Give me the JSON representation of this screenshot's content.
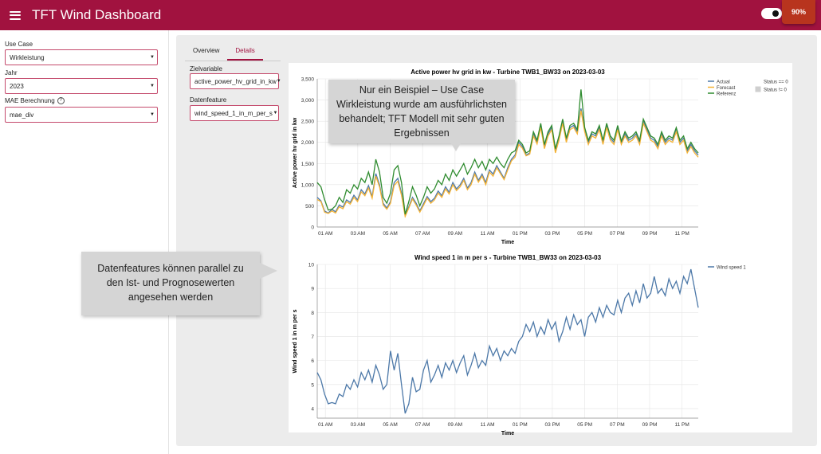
{
  "app": {
    "title": "TFT Wind Dashboard",
    "zoom": "90%"
  },
  "sidebar": {
    "use_case": {
      "label": "Use Case",
      "value": "Wirkleistung"
    },
    "jahr": {
      "label": "Jahr",
      "value": "2023"
    },
    "mae": {
      "label": "MAE Berechnung",
      "value": "mae_div",
      "help": "?"
    }
  },
  "tabs": [
    {
      "label": "Overview"
    },
    {
      "label": "Details"
    }
  ],
  "controls": {
    "zielvariable": {
      "label": "Zielvariable",
      "value": "active_power_hv_grid_in_kw"
    },
    "datenfeature": {
      "label": "Datenfeature",
      "value": "wind_speed_1_in_m_per_s"
    }
  },
  "annotations": {
    "top": "Nur ein Beispiel – Use Case Wirkleistung wurde am ausführlichsten behandelt; TFT Modell mit sehr guten Ergebnissen",
    "left": "Datenfeatures können parallel zu den Ist- und Prognosewerten angesehen werden"
  },
  "colors": {
    "accent": "#a1123f",
    "actual": "#4c78a8",
    "forecast": "#f5b335",
    "referenz": "#2e8b2e"
  },
  "chart_data": [
    {
      "type": "line",
      "title": "Active power hv grid in kw -  Turbine TWB1_BW33 on 2023-03-03",
      "xlabel": "Time",
      "ylabel": "Active power hv grid in kw",
      "x_ticks": [
        "01 AM",
        "03 AM",
        "05 AM",
        "07 AM",
        "09 AM",
        "11 AM",
        "01 PM",
        "03 PM",
        "05 PM",
        "07 PM",
        "09 PM",
        "11 PM"
      ],
      "xlim_hours": [
        0.5,
        24
      ],
      "ylim": [
        0,
        3500
      ],
      "y_ticks": [
        0,
        500,
        1000,
        1500,
        2000,
        2500,
        3000,
        3500
      ],
      "y_tick_labels": [
        "0",
        "500",
        "1,000",
        "1,500",
        "2,000",
        "2,500",
        "3,000",
        "3,500"
      ],
      "legend_placement": "top-right",
      "status_legend": [
        "Status == 0",
        "Status != 0"
      ],
      "series": [
        {
          "name": "Actual",
          "color": "#4c78a8",
          "values": [
            700,
            620,
            380,
            330,
            420,
            360,
            520,
            470,
            640,
            580,
            750,
            640,
            880,
            780,
            980,
            720,
            1260,
            1000,
            560,
            450,
            600,
            1050,
            1150,
            800,
            280,
            480,
            700,
            560,
            380,
            550,
            720,
            600,
            680,
            850,
            740,
            950,
            820,
            1050,
            900,
            1000,
            1150,
            920,
            1050,
            1300,
            1100,
            1250,
            1050,
            1350,
            1250,
            1450,
            1300,
            1150,
            1400,
            1600,
            1700,
            2000,
            1900,
            1700,
            1750,
            2200,
            2000,
            2400,
            1900,
            2200,
            2350,
            1800,
            2100,
            2500,
            2050,
            2350,
            2400,
            2250,
            2800,
            2300,
            2000,
            2200,
            2150,
            2350,
            2000,
            2400,
            2100,
            2000,
            2350,
            1980,
            2200,
            2050,
            2100,
            2200,
            2000,
            2500,
            2300,
            2100,
            2050,
            1900,
            2200,
            2000,
            2100,
            2050,
            2300,
            2000,
            2100,
            1800,
            1950,
            1800,
            1700
          ]
        },
        {
          "name": "Forecast",
          "color": "#f5b335",
          "values": [
            650,
            600,
            350,
            320,
            380,
            330,
            480,
            430,
            600,
            540,
            700,
            600,
            830,
            740,
            920,
            680,
            1200,
            950,
            520,
            420,
            560,
            980,
            1080,
            750,
            250,
            450,
            660,
            520,
            350,
            510,
            680,
            560,
            640,
            800,
            700,
            900,
            780,
            1000,
            860,
            950,
            1100,
            880,
            1000,
            1250,
            1060,
            1200,
            1000,
            1300,
            1200,
            1400,
            1260,
            1120,
            1350,
            1560,
            1650,
            1950,
            1860,
            1680,
            1720,
            2150,
            1960,
            2350,
            1850,
            2150,
            2300,
            1750,
            2050,
            2450,
            2000,
            2300,
            2350,
            2200,
            2750,
            2250,
            1950,
            2150,
            2100,
            2300,
            1950,
            2350,
            2050,
            1950,
            2300,
            1950,
            2150,
            2000,
            2050,
            2150,
            1950,
            2450,
            2250,
            2050,
            2000,
            1850,
            2150,
            1950,
            2050,
            2000,
            2250,
            1950,
            2050,
            1750,
            1900,
            1750,
            1650
          ]
        },
        {
          "name": "Referenz",
          "color": "#2e8b2e",
          "values": [
            1050,
            950,
            650,
            400,
            420,
            500,
            700,
            580,
            880,
            800,
            1000,
            900,
            1150,
            1050,
            1300,
            1000,
            1600,
            1300,
            700,
            560,
            800,
            1350,
            1450,
            1050,
            300,
            600,
            950,
            750,
            500,
            700,
            950,
            800,
            900,
            1100,
            1000,
            1250,
            1100,
            1350,
            1200,
            1350,
            1500,
            1250,
            1400,
            1600,
            1400,
            1550,
            1350,
            1600,
            1500,
            1650,
            1500,
            1400,
            1600,
            1750,
            1800,
            2050,
            1950,
            1750,
            1800,
            2250,
            2050,
            2450,
            1950,
            2250,
            2400,
            1850,
            2150,
            2550,
            2100,
            2400,
            2450,
            2300,
            3250,
            2350,
            2050,
            2250,
            2200,
            2400,
            2050,
            2450,
            2150,
            2050,
            2400,
            2030,
            2250,
            2100,
            2150,
            2250,
            2050,
            2550,
            2350,
            2150,
            2100,
            1950,
            2250,
            2050,
            2150,
            2100,
            2350,
            2050,
            2150,
            1850,
            2000,
            1850,
            1750
          ]
        }
      ]
    },
    {
      "type": "line",
      "title": "Wind speed 1 in m per s -  Turbine TWB1_BW33 on 2023-03-03",
      "xlabel": "Time",
      "ylabel": "Wind speed 1 in m per s",
      "x_ticks": [
        "01 AM",
        "03 AM",
        "05 AM",
        "07 AM",
        "09 AM",
        "11 AM",
        "01 PM",
        "03 PM",
        "05 PM",
        "07 PM",
        "09 PM",
        "11 PM"
      ],
      "xlim_hours": [
        0.5,
        24
      ],
      "ylim": [
        3.6,
        10
      ],
      "y_ticks": [
        4,
        5,
        6,
        7,
        8,
        9,
        10
      ],
      "y_tick_labels": [
        "4",
        "5",
        "6",
        "7",
        "8",
        "9",
        "10"
      ],
      "legend_placement": "top-right",
      "series": [
        {
          "name": "Wind speed 1",
          "color": "#4c78a8",
          "values": [
            5.5,
            5.2,
            4.6,
            4.2,
            4.25,
            4.2,
            4.6,
            4.5,
            5.0,
            4.8,
            5.2,
            4.9,
            5.5,
            5.2,
            5.6,
            5.1,
            5.8,
            5.4,
            4.8,
            5.0,
            6.4,
            5.6,
            6.3,
            5.0,
            3.8,
            4.2,
            5.3,
            4.7,
            4.8,
            5.6,
            6.0,
            5.1,
            5.4,
            5.8,
            5.3,
            5.9,
            5.6,
            6.0,
            5.5,
            5.9,
            6.2,
            5.4,
            5.8,
            6.3,
            5.7,
            6.0,
            5.8,
            6.6,
            6.2,
            6.5,
            6.0,
            6.4,
            6.2,
            6.5,
            6.3,
            6.8,
            7.0,
            7.5,
            7.2,
            7.6,
            7.0,
            7.4,
            7.1,
            7.7,
            7.3,
            7.6,
            6.8,
            7.2,
            7.8,
            7.3,
            7.9,
            7.5,
            7.7,
            7.0,
            7.8,
            8.0,
            7.6,
            8.2,
            7.8,
            8.3,
            8.0,
            7.9,
            8.5,
            8.0,
            8.6,
            8.8,
            8.3,
            8.9,
            8.4,
            9.2,
            8.6,
            8.8,
            9.5,
            8.8,
            9.0,
            8.7,
            9.4,
            9.0,
            9.3,
            8.8,
            9.5,
            9.2,
            9.8,
            9.0,
            8.2
          ]
        }
      ]
    }
  ]
}
